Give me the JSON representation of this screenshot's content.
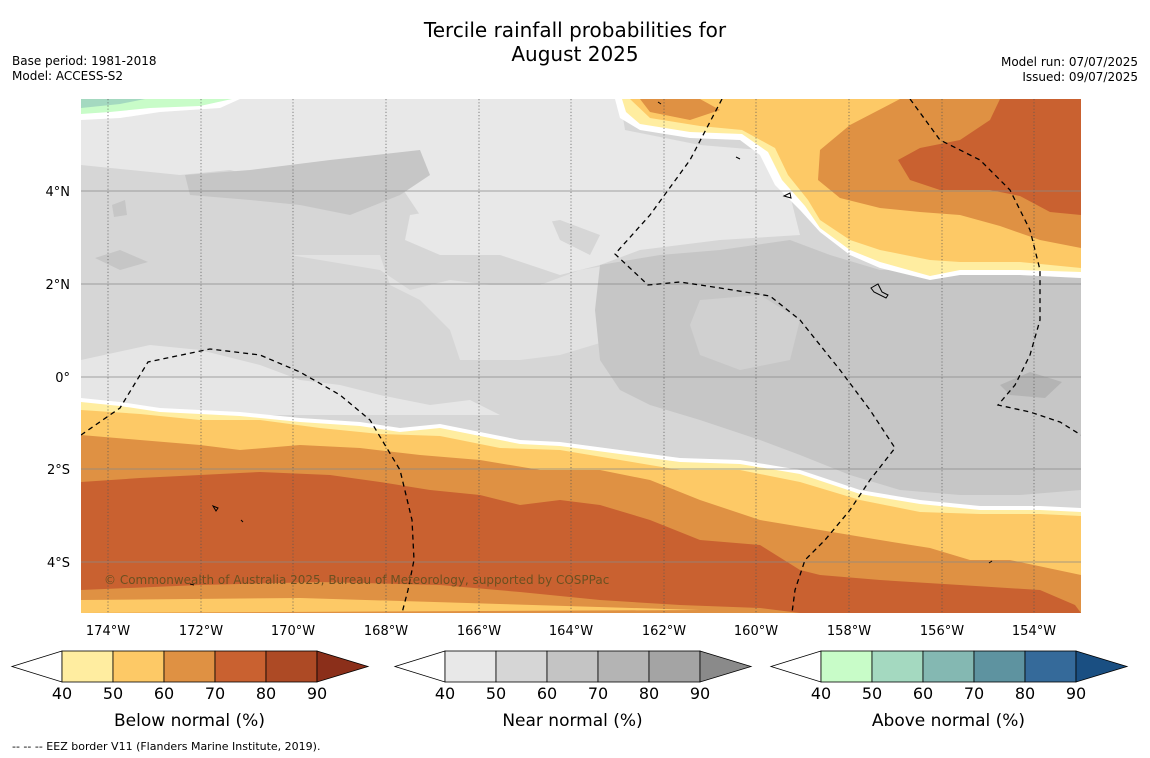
{
  "title": {
    "line1": "Tercile rainfall probabilities for",
    "line2": "August 2025"
  },
  "meta_left": {
    "base_period": "Base period: 1981-2018",
    "model": "Model: ACCESS-S2"
  },
  "meta_right": {
    "model_run": "Model run: 07/07/2025",
    "issued": "Issued: 09/07/2025"
  },
  "copyright": "© Commonwealth of Australia 2025, Bureau of Meteorology, supported by COSPPac",
  "footnote": "-- -- -- EEZ border V11 (Flanders Marine Institute, 2019).",
  "map": {
    "lon_labels": [
      "174°W",
      "172°W",
      "170°W",
      "168°W",
      "166°W",
      "164°W",
      "162°W",
      "160°W",
      "158°W",
      "156°W",
      "154°W"
    ],
    "lat_labels": [
      "4°N",
      "2°N",
      "0°",
      "2°S",
      "4°S"
    ]
  },
  "colorbars": [
    {
      "label": "Below normal (%)",
      "ticks": [
        "40",
        "50",
        "60",
        "70",
        "80",
        "90"
      ],
      "colors": [
        "#ffeda0",
        "#fdc966",
        "#df9143",
        "#c96130",
        "#ad4a25",
        "#8b2f1a"
      ]
    },
    {
      "label": "Near normal (%)",
      "ticks": [
        "40",
        "50",
        "60",
        "70",
        "80",
        "90"
      ],
      "colors": [
        "#e8e8e8",
        "#d6d6d6",
        "#c4c4c4",
        "#b4b4b4",
        "#a4a4a4",
        "#8a8a8a"
      ]
    },
    {
      "label": "Above normal (%)",
      "ticks": [
        "40",
        "50",
        "60",
        "70",
        "80",
        "90"
      ],
      "colors": [
        "#c8fcc8",
        "#a4d9c0",
        "#84b8b2",
        "#5e93a0",
        "#356a9a",
        "#1a4f82"
      ]
    }
  ]
}
